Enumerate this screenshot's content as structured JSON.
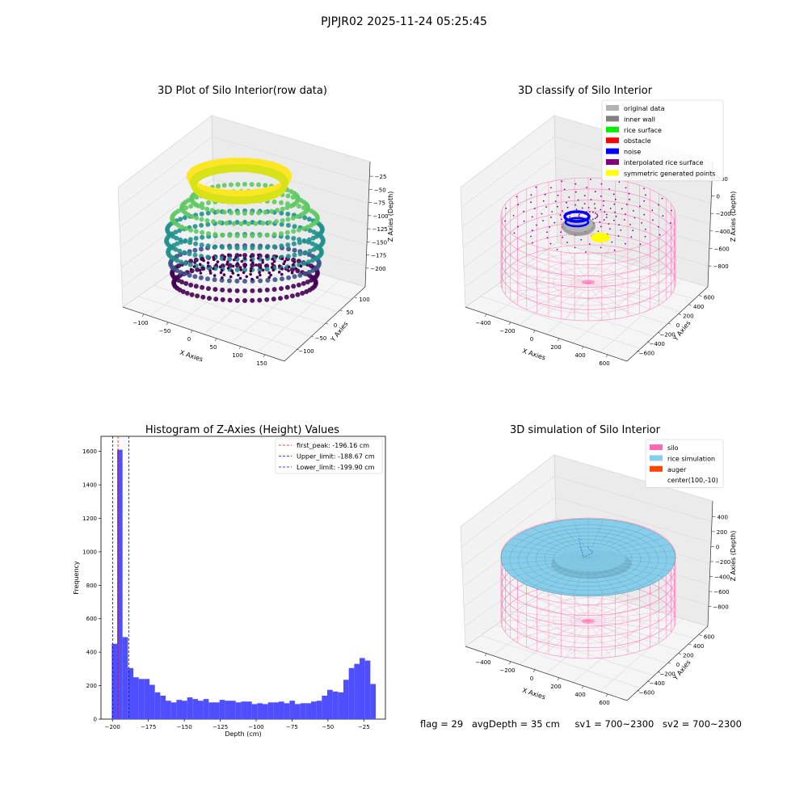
{
  "figure": {
    "suptitle": "PJPJR02 2025-11-24 05:25:45"
  },
  "panel_raw": {
    "title": "3D Plot of Silo Interior(row data)",
    "xlabel": "X Axies",
    "ylabel": "Y Axies",
    "zlabel": "Z Axies (Depth)",
    "xticks": [
      "−100",
      "−50",
      "0",
      "50",
      "100",
      "150"
    ],
    "yticks": [
      "100",
      "50",
      "0",
      "−50",
      "−100"
    ],
    "zticks": [
      "−25",
      "−50",
      "−75",
      "−100",
      "−125",
      "−150",
      "−175",
      "−200"
    ],
    "colormap": [
      "#440154",
      "#3b528b",
      "#21918c",
      "#5ec962",
      "#fde725"
    ]
  },
  "panel_classify": {
    "title": "3D classify of Silo Interior",
    "xlabel": "X Axies",
    "ylabel": "Y Axies",
    "zlabel": "Z Axies (Depth)",
    "xticks": [
      "−400",
      "−200",
      "0",
      "200",
      "400",
      "600"
    ],
    "yticks": [
      "600",
      "400",
      "200",
      "0",
      "−200",
      "−400",
      "−600"
    ],
    "zticks": [
      "200",
      "0",
      "−200",
      "−400",
      "−600",
      "−800"
    ],
    "legend": [
      {
        "label": "original data",
        "color": "#b3b3b3"
      },
      {
        "label": "inner wall",
        "color": "#808080"
      },
      {
        "label": "rice surface",
        "color": "#00ee00"
      },
      {
        "label": "obstacle",
        "color": "#ff0000"
      },
      {
        "label": "noise",
        "color": "#0000ff"
      },
      {
        "label": "interpolated rice surface",
        "color": "#800080"
      },
      {
        "label": "symmetric generated points",
        "color": "#ffff00"
      }
    ]
  },
  "panel_sim": {
    "title": "3D simulation of Silo Interior",
    "xlabel": "X Axies",
    "ylabel": "Y Axies",
    "zlabel": "Z Axies (Depth)",
    "xticks": [
      "−400",
      "−200",
      "0",
      "200",
      "400",
      "600"
    ],
    "yticks": [
      "600",
      "400",
      "200",
      "0",
      "−200",
      "−400",
      "−600"
    ],
    "zticks": [
      "400",
      "200",
      "0",
      "−200",
      "−400",
      "−600",
      "−800"
    ],
    "legend": [
      {
        "label": "silo",
        "color": "#ff69b4"
      },
      {
        "label": "rice simulation",
        "color": "#87ceeb"
      },
      {
        "label": "auger",
        "color": "#ff4500"
      },
      {
        "label": "center(100,-10)",
        "color": ""
      }
    ]
  },
  "chart_data": {
    "type": "bar",
    "title": "Histogram of Z-Axies (Height) Values",
    "xlabel": "Depth (cm)",
    "ylabel": "Frequency",
    "xlim": [
      -208,
      -10
    ],
    "ylim": [
      0,
      1690
    ],
    "xticks": [
      -200,
      -175,
      -150,
      -125,
      -100,
      -75,
      -50,
      -25
    ],
    "xtick_labels": [
      "−200",
      "−175",
      "−150",
      "−125",
      "−100",
      "−75",
      "−50",
      "−25"
    ],
    "yticks": [
      0,
      200,
      400,
      600,
      800,
      1000,
      1200,
      1400,
      1600
    ],
    "bar_color": "#4f4fff",
    "bin_start": -200.5,
    "bin_width": 3.75,
    "values": [
      450,
      1610,
      490,
      305,
      250,
      240,
      240,
      205,
      160,
      140,
      110,
      100,
      115,
      110,
      130,
      120,
      110,
      120,
      100,
      100,
      115,
      110,
      110,
      100,
      105,
      105,
      90,
      95,
      90,
      100,
      100,
      105,
      95,
      110,
      90,
      95,
      95,
      105,
      110,
      140,
      175,
      165,
      160,
      235,
      305,
      330,
      365,
      350,
      210
    ],
    "lines": [
      {
        "label": "first_peak: -196.16 cm",
        "x": -196.16,
        "color": "#ff0000"
      },
      {
        "label": "Upper_limit: -188.67 cm",
        "x": -188.67,
        "color": "#0000ff"
      },
      {
        "label": "Lower_limit: -199.90 cm",
        "x": -199.9,
        "color": "#0000ff"
      }
    ],
    "legend_position": "top-right"
  },
  "footer": {
    "flag": "flag = 29",
    "avg_depth": "avgDepth = 35 cm",
    "sv1": "sv1 = 700~2300",
    "sv2": "sv2 = 700~2300"
  }
}
